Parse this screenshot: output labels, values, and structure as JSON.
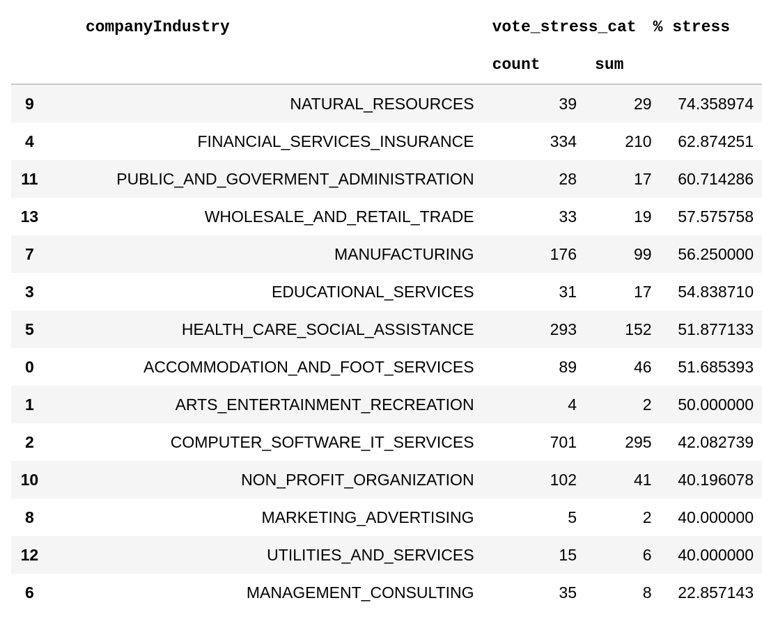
{
  "headers": {
    "index_blank": "",
    "company_industry": "companyIndustry",
    "vote_stress_cat": "vote_stress_cat",
    "pct_stress": "% stress",
    "count": "count",
    "sum": "sum"
  },
  "rows": [
    {
      "index": "9",
      "industry": "NATURAL_RESOURCES",
      "count": "39",
      "sum": "29",
      "pct": "74.358974"
    },
    {
      "index": "4",
      "industry": "FINANCIAL_SERVICES_INSURANCE",
      "count": "334",
      "sum": "210",
      "pct": "62.874251"
    },
    {
      "index": "11",
      "industry": "PUBLIC_AND_GOVERMENT_ADMINISTRATION",
      "count": "28",
      "sum": "17",
      "pct": "60.714286"
    },
    {
      "index": "13",
      "industry": "WHOLESALE_AND_RETAIL_TRADE",
      "count": "33",
      "sum": "19",
      "pct": "57.575758"
    },
    {
      "index": "7",
      "industry": "MANUFACTURING",
      "count": "176",
      "sum": "99",
      "pct": "56.250000"
    },
    {
      "index": "3",
      "industry": "EDUCATIONAL_SERVICES",
      "count": "31",
      "sum": "17",
      "pct": "54.838710"
    },
    {
      "index": "5",
      "industry": "HEALTH_CARE_SOCIAL_ASSISTANCE",
      "count": "293",
      "sum": "152",
      "pct": "51.877133"
    },
    {
      "index": "0",
      "industry": "ACCOMMODATION_AND_FOOT_SERVICES",
      "count": "89",
      "sum": "46",
      "pct": "51.685393"
    },
    {
      "index": "1",
      "industry": "ARTS_ENTERTAINMENT_RECREATION",
      "count": "4",
      "sum": "2",
      "pct": "50.000000"
    },
    {
      "index": "2",
      "industry": "COMPUTER_SOFTWARE_IT_SERVICES",
      "count": "701",
      "sum": "295",
      "pct": "42.082739"
    },
    {
      "index": "10",
      "industry": "NON_PROFIT_ORGANIZATION",
      "count": "102",
      "sum": "41",
      "pct": "40.196078"
    },
    {
      "index": "8",
      "industry": "MARKETING_ADVERTISING",
      "count": "5",
      "sum": "2",
      "pct": "40.000000"
    },
    {
      "index": "12",
      "industry": "UTILITIES_AND_SERVICES",
      "count": "15",
      "sum": "6",
      "pct": "40.000000"
    },
    {
      "index": "6",
      "industry": "MANAGEMENT_CONSULTING",
      "count": "35",
      "sum": "8",
      "pct": "22.857143"
    }
  ]
}
